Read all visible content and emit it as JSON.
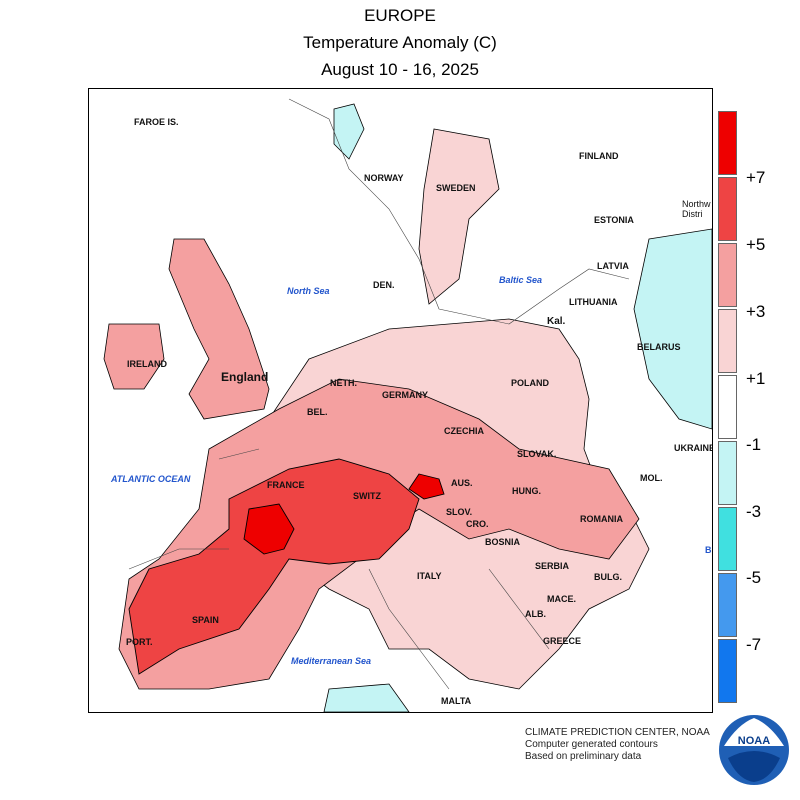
{
  "title": {
    "region": "EUROPE",
    "variable": "Temperature Anomaly (C)",
    "period": "August 10 - 16, 2025"
  },
  "map_labels": {
    "faroe": "FAROE IS.",
    "norway": "NORWAY",
    "sweden": "SWEDEN",
    "finland": "FINLAND",
    "estonia": "ESTONIA",
    "northwest_district": "Northw Distri",
    "latvia": "LATVIA",
    "lithuania": "LITHUANIA",
    "kal": "Kal.",
    "belarus": "BELARUS",
    "den": "DEN.",
    "ireland": "IRELAND",
    "england": "England",
    "neth": "NETH.",
    "germany": "GERMANY",
    "poland": "POLAND",
    "bel": "BEL.",
    "czechia": "CZECHIA",
    "ukraine": "UKRAINE",
    "slovak": "SLOVAK.",
    "mol": "MOL.",
    "france": "FRANCE",
    "switz": "SWITZ",
    "aus": "AUS.",
    "hung": "HUNG.",
    "romania": "ROMANIA",
    "slov": "SLOV.",
    "cro": "CRO.",
    "bosnia": "BOSNIA",
    "serbia": "SERBIA",
    "bulg": "BULG.",
    "italy": "ITALY",
    "mace": "MACE.",
    "alb": "ALB.",
    "greece": "GREECE",
    "spain": "SPAIN",
    "port": "PORT.",
    "malta": "MALTA",
    "b_edge": "B"
  },
  "seas": {
    "north_sea": "North Sea",
    "baltic_sea": "Baltic Sea",
    "atlantic": "ATLANTIC OCEAN",
    "mediterranean": "Mediterranean Sea"
  },
  "legend": {
    "labels": [
      "+7",
      "+5",
      "+3",
      "+1",
      "-1",
      "-3",
      "-5",
      "-7"
    ],
    "colors": [
      "#ee0000",
      "#ee4444",
      "#f4a0a0",
      "#f9d4d4",
      "#ffffff",
      "#c4f4f4",
      "#40e0e0",
      "#4499ee",
      "#1177ee"
    ]
  },
  "map_colors": {
    "plus1": "#f9d4d4",
    "plus3": "#f4a0a0",
    "plus5": "#ee4444",
    "plus7": "#ee0000",
    "minus1": "#c4f4f4"
  },
  "credit": {
    "line1": "CLIMATE PREDICTION CENTER, NOAA",
    "line2": "Computer generated contours",
    "line3": "Based on preliminary data"
  },
  "logo_text": "NOAA"
}
